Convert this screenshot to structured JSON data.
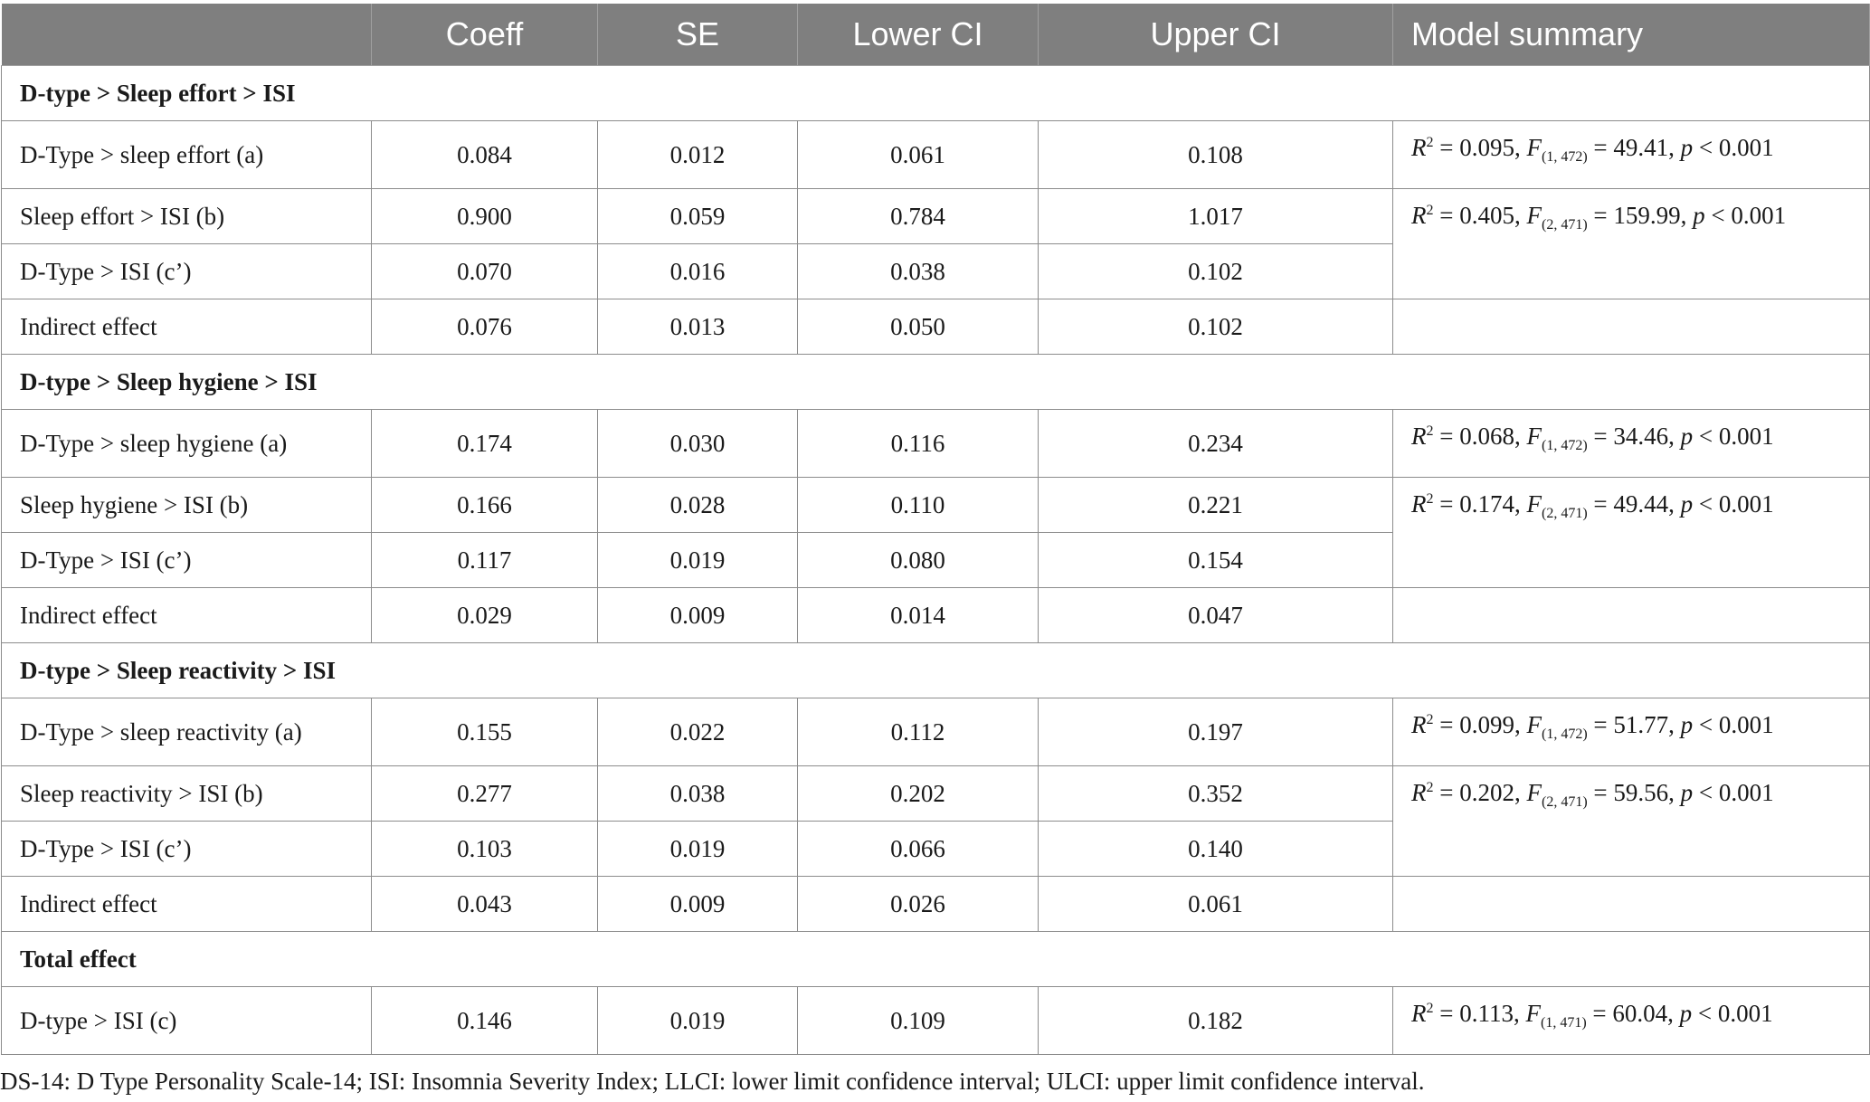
{
  "headers": [
    "",
    "Coeff",
    "SE",
    "Lower CI",
    "Upper CI",
    "Model summary"
  ],
  "sections": [
    {
      "title": "D-type > Sleep effort > ISI",
      "rows": [
        {
          "label": "D-Type > sleep effort (a)",
          "coeff": "0.084",
          "se": "0.012",
          "lower": "0.061",
          "upper": "0.108"
        },
        {
          "label": "Sleep effort > ISI (b)",
          "coeff": "0.900",
          "se": "0.059",
          "lower": "0.784",
          "upper": "1.017"
        },
        {
          "label": "D-Type > ISI (c’)",
          "coeff": "0.070",
          "se": "0.016",
          "lower": "0.038",
          "upper": "0.102"
        },
        {
          "label": "Indirect effect",
          "coeff": "0.076",
          "se": "0.013",
          "lower": "0.050",
          "upper": "0.102"
        }
      ],
      "summaries": [
        {
          "r2": "0.095",
          "df": "(1, 472)",
          "f": "49.41",
          "p": "0.001"
        },
        {
          "r2": "0.405",
          "df": "(2, 471)",
          "f": "159.99",
          "p": "0.001"
        }
      ]
    },
    {
      "title": "D-type > Sleep hygiene > ISI",
      "rows": [
        {
          "label": "D-Type > sleep hygiene (a)",
          "coeff": "0.174",
          "se": "0.030",
          "lower": "0.116",
          "upper": "0.234"
        },
        {
          "label": "Sleep hygiene > ISI (b)",
          "coeff": "0.166",
          "se": "0.028",
          "lower": "0.110",
          "upper": "0.221"
        },
        {
          "label": "D-Type > ISI (c’)",
          "coeff": "0.117",
          "se": "0.019",
          "lower": "0.080",
          "upper": "0.154"
        },
        {
          "label": "Indirect effect",
          "coeff": "0.029",
          "se": "0.009",
          "lower": "0.014",
          "upper": "0.047"
        }
      ],
      "summaries": [
        {
          "r2": "0.068",
          "df": "(1, 472)",
          "f": "34.46",
          "p": "0.001"
        },
        {
          "r2": "0.174",
          "df": "(2, 471)",
          "f": "49.44",
          "p": "0.001"
        }
      ]
    },
    {
      "title": "D-type > Sleep reactivity > ISI",
      "rows": [
        {
          "label": "D-Type > sleep reactivity (a)",
          "coeff": "0.155",
          "se": "0.022",
          "lower": "0.112",
          "upper": "0.197"
        },
        {
          "label": "Sleep reactivity > ISI (b)",
          "coeff": "0.277",
          "se": "0.038",
          "lower": "0.202",
          "upper": "0.352"
        },
        {
          "label": "D-Type > ISI (c’)",
          "coeff": "0.103",
          "se": "0.019",
          "lower": "0.066",
          "upper": "0.140"
        },
        {
          "label": "Indirect effect",
          "coeff": "0.043",
          "se": "0.009",
          "lower": "0.026",
          "upper": "0.061"
        }
      ],
      "summaries": [
        {
          "r2": "0.099",
          "df": "(1, 472)",
          "f": "51.77",
          "p": "0.001"
        },
        {
          "r2": "0.202",
          "df": "(2, 471)",
          "f": "59.56",
          "p": "0.001"
        }
      ]
    }
  ],
  "total": {
    "title": "Total effect",
    "row": {
      "label": "D-type > ISI (c)",
      "coeff": "0.146",
      "se": "0.019",
      "lower": "0.109",
      "upper": "0.182"
    },
    "summary": {
      "r2": "0.113",
      "df": "(1, 471)",
      "f": "60.04",
      "p": "0.001"
    }
  },
  "footnote": "DS-14: D Type Personality Scale-14; ISI: Insomnia Severity Index; LLCI: lower limit confidence interval; ULCI: upper limit confidence interval."
}
